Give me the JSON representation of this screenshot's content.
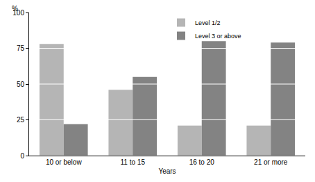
{
  "chart_data": {
    "type": "bar",
    "x_label": "Years",
    "y_label": "%",
    "categories": [
      "10 or below",
      "11 to 15",
      "16 to 20",
      "21 or more"
    ],
    "series": [
      {
        "name": "Level 1/2",
        "color": "#b5b5b5",
        "values": [
          78,
          46,
          21,
          21
        ]
      },
      {
        "name": "Level 3 or above",
        "color": "#838383",
        "values": [
          22,
          55,
          80,
          79
        ]
      }
    ],
    "ylim": [
      0,
      100
    ],
    "yticks": [
      0,
      25,
      50,
      75,
      100
    ],
    "grid": true,
    "legend": "top"
  }
}
